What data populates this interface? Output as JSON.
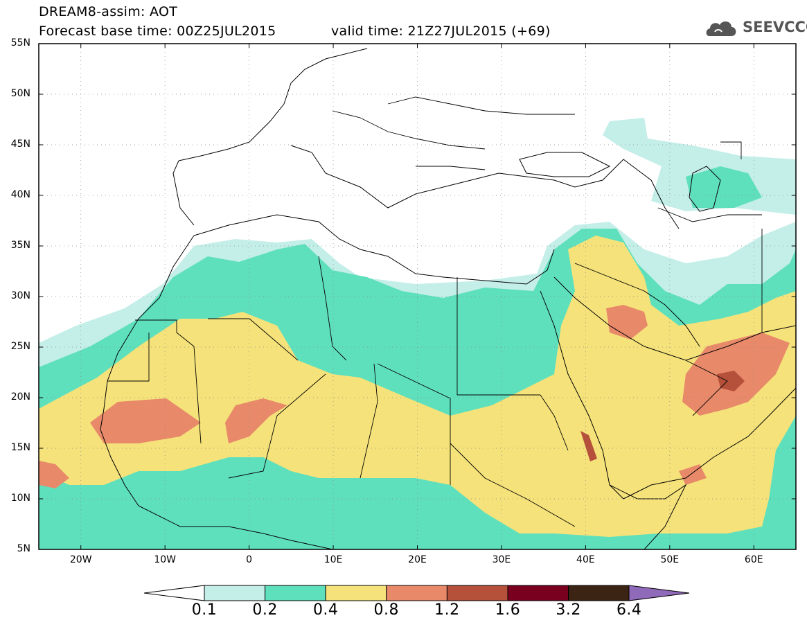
{
  "header": {
    "line1": "DREAM8-assim: AOT",
    "line2": "Forecast base time: 00Z25JUL2015",
    "line3": "valid time: 21Z27JUL2015 (+69)",
    "logo_text": "SEEVCCC"
  },
  "map": {
    "lat_labels": [
      "55N",
      "50N",
      "45N",
      "40N",
      "35N",
      "30N",
      "25N",
      "20N",
      "15N",
      "10N",
      "5N"
    ],
    "lon_labels": [
      "20W",
      "10W",
      "0",
      "10E",
      "20E",
      "30E",
      "40E",
      "50E",
      "60E"
    ],
    "lon_range": [
      -25,
      65
    ],
    "lat_range": [
      5,
      55
    ]
  },
  "colors": {
    "c01": "#c4eee8",
    "c02": "#5fe0bd",
    "c04": "#f5e27a",
    "c08": "#e8896a",
    "c12": "#b5503a",
    "c16": "#7a0020",
    "c32": "#3b2413",
    "c64": "#8e6ab8"
  },
  "colorbar": {
    "labels": [
      "0.1",
      "0.2",
      "0.4",
      "0.8",
      "1.2",
      "1.6",
      "3.2",
      "6.4"
    ]
  }
}
